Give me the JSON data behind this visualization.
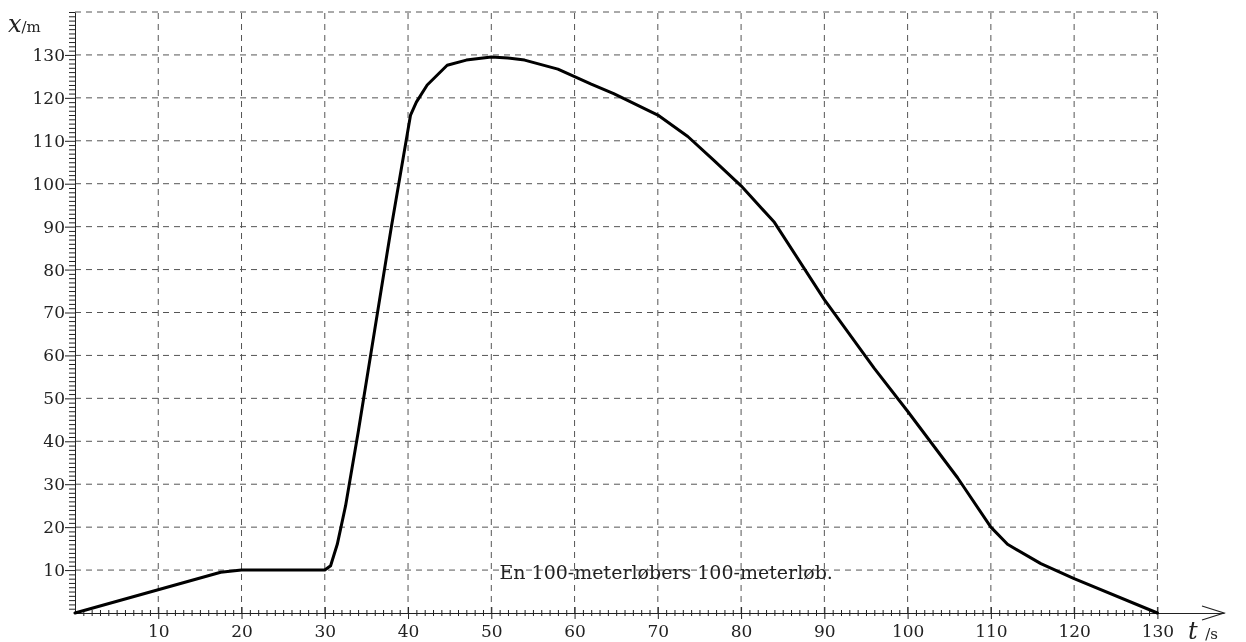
{
  "chart_data": {
    "type": "line",
    "xlabel": "t /s",
    "ylabel": "x/m",
    "annotations": [
      "En 100-meterløbers 100-meterløb."
    ],
    "xlim": [
      0,
      138
    ],
    "ylim": [
      0,
      140
    ],
    "xticks": [
      {
        "value": 1,
        "label": null
      },
      {
        "value": 2,
        "label": null
      },
      {
        "value": 3,
        "label": null
      },
      {
        "value": 4,
        "label": null
      },
      {
        "value": 5,
        "label": null
      },
      {
        "value": 6,
        "label": null
      },
      {
        "value": 7,
        "label": null
      },
      {
        "value": 8,
        "label": null
      },
      {
        "value": 9,
        "label": null
      },
      10,
      {
        "value": 11,
        "label": null
      },
      {
        "value": 12,
        "label": null
      },
      {
        "value": 13,
        "label": null
      },
      {
        "value": 14,
        "label": null
      },
      {
        "value": 15,
        "label": null
      },
      {
        "value": 16,
        "label": null
      },
      {
        "value": 17,
        "label": null
      },
      {
        "value": 18,
        "label": null
      },
      {
        "value": 19,
        "label": null
      },
      20,
      {
        "value": 21,
        "label": null
      },
      {
        "value": 22,
        "label": null
      },
      {
        "value": 23,
        "label": null
      },
      {
        "value": 24,
        "label": null
      },
      {
        "value": 25,
        "label": null
      },
      {
        "value": 26,
        "label": null
      },
      {
        "value": 27,
        "label": null
      },
      {
        "value": 28,
        "label": null
      },
      {
        "value": 29,
        "label": null
      },
      30,
      {
        "value": 31,
        "label": null
      },
      {
        "value": 32,
        "label": null
      },
      {
        "value": 33,
        "label": null
      },
      {
        "value": 34,
        "label": null
      },
      {
        "value": 35,
        "label": null
      },
      {
        "value": 36,
        "label": null
      },
      {
        "value": 37,
        "label": null
      },
      {
        "value": 38,
        "label": null
      },
      {
        "value": 39,
        "label": null
      },
      40,
      {
        "value": 41,
        "label": null
      },
      {
        "value": 42,
        "label": null
      },
      {
        "value": 43,
        "label": null
      },
      {
        "value": 44,
        "label": null
      },
      {
        "value": 45,
        "label": null
      },
      {
        "value": 46,
        "label": null
      },
      {
        "value": 47,
        "label": null
      },
      {
        "value": 48,
        "label": null
      },
      {
        "value": 49,
        "label": null
      },
      50,
      {
        "value": 51,
        "label": null
      },
      {
        "value": 52,
        "label": null
      },
      {
        "value": 53,
        "label": null
      },
      {
        "value": 54,
        "label": null
      },
      {
        "value": 55,
        "label": null
      },
      {
        "value": 56,
        "label": null
      },
      {
        "value": 57,
        "label": null
      },
      {
        "value": 58,
        "label": null
      },
      {
        "value": 59,
        "label": null
      },
      60,
      {
        "value": 61,
        "label": null
      },
      {
        "value": 62,
        "label": null
      },
      {
        "value": 63,
        "label": null
      },
      {
        "value": 64,
        "label": null
      },
      {
        "value": 65,
        "label": null
      },
      {
        "value": 66,
        "label": null
      },
      {
        "value": 67,
        "label": null
      },
      {
        "value": 68,
        "label": null
      },
      {
        "value": 69,
        "label": null
      },
      70,
      {
        "value": 71,
        "label": null
      },
      {
        "value": 72,
        "label": null
      },
      {
        "value": 73,
        "label": null
      },
      {
        "value": 74,
        "label": null
      },
      {
        "value": 75,
        "label": null
      },
      {
        "value": 76,
        "label": null
      },
      {
        "value": 77,
        "label": null
      },
      {
        "value": 78,
        "label": null
      },
      {
        "value": 79,
        "label": null
      },
      80,
      {
        "value": 81,
        "label": null
      },
      {
        "value": 82,
        "label": null
      },
      {
        "value": 83,
        "label": null
      },
      {
        "value": 84,
        "label": null
      },
      {
        "value": 85,
        "label": null
      },
      {
        "value": 86,
        "label": null
      },
      {
        "value": 87,
        "label": null
      },
      {
        "value": 88,
        "label": null
      },
      {
        "value": 89,
        "label": null
      },
      90,
      {
        "value": 91,
        "label": null
      },
      {
        "value": 92,
        "label": null
      },
      {
        "value": 93,
        "label": null
      },
      {
        "value": 94,
        "label": null
      },
      {
        "value": 95,
        "label": null
      },
      {
        "value": 96,
        "label": null
      },
      {
        "value": 97,
        "label": null
      },
      {
        "value": 98,
        "label": null
      },
      {
        "value": 99,
        "label": null
      },
      100,
      {
        "value": 101,
        "label": null
      },
      {
        "value": 102,
        "label": null
      },
      {
        "value": 103,
        "label": null
      },
      {
        "value": 104,
        "label": null
      },
      {
        "value": 105,
        "label": null
      },
      {
        "value": 106,
        "label": null
      },
      {
        "value": 107,
        "label": null
      },
      {
        "value": 108,
        "label": null
      },
      {
        "value": 109,
        "label": null
      },
      110,
      {
        "value": 111,
        "label": null
      },
      {
        "value": 112,
        "label": null
      },
      {
        "value": 113,
        "label": null
      },
      {
        "value": 114,
        "label": null
      },
      {
        "value": 115,
        "label": null
      },
      {
        "value": 116,
        "label": null
      },
      {
        "value": 117,
        "label": null
      },
      {
        "value": 118,
        "label": null
      },
      {
        "value": 119,
        "label": null
      },
      120,
      {
        "value": 121,
        "label": null
      },
      {
        "value": 122,
        "label": null
      },
      {
        "value": 123,
        "label": null
      },
      {
        "value": 124,
        "label": null
      },
      {
        "value": 125,
        "label": null
      },
      {
        "value": 126,
        "label": null
      },
      {
        "value": 127,
        "label": null
      },
      {
        "value": 128,
        "label": null
      },
      {
        "value": 129,
        "label": null
      },
      130
    ],
    "yticks": [
      {
        "value": 1,
        "label": null
      },
      {
        "value": 2,
        "label": null
      },
      {
        "value": 3,
        "label": null
      },
      {
        "value": 4,
        "label": null
      },
      {
        "value": 5,
        "label": null
      },
      {
        "value": 6,
        "label": null
      },
      {
        "value": 7,
        "label": null
      },
      {
        "value": 8,
        "label": null
      },
      {
        "value": 9,
        "label": null
      },
      10,
      {
        "value": 11,
        "label": null
      },
      {
        "value": 12,
        "label": null
      },
      {
        "value": 13,
        "label": null
      },
      {
        "value": 14,
        "label": null
      },
      {
        "value": 15,
        "label": null
      },
      {
        "value": 16,
        "label": null
      },
      {
        "value": 17,
        "label": null
      },
      {
        "value": 18,
        "label": null
      },
      {
        "value": 19,
        "label": null
      },
      20,
      {
        "value": 21,
        "label": null
      },
      {
        "value": 22,
        "label": null
      },
      {
        "value": 23,
        "label": null
      },
      {
        "value": 24,
        "label": null
      },
      {
        "value": 25,
        "label": null
      },
      {
        "value": 26,
        "label": null
      },
      {
        "value": 27,
        "label": null
      },
      {
        "value": 28,
        "label": null
      },
      {
        "value": 29,
        "label": null
      },
      30,
      {
        "value": 31,
        "label": null
      },
      {
        "value": 32,
        "label": null
      },
      {
        "value": 33,
        "label": null
      },
      {
        "value": 34,
        "label": null
      },
      {
        "value": 35,
        "label": null
      },
      {
        "value": 36,
        "label": null
      },
      {
        "value": 37,
        "label": null
      },
      {
        "value": 38,
        "label": null
      },
      {
        "value": 39,
        "label": null
      },
      40,
      {
        "value": 41,
        "label": null
      },
      {
        "value": 42,
        "label": null
      },
      {
        "value": 43,
        "label": null
      },
      {
        "value": 44,
        "label": null
      },
      {
        "value": 45,
        "label": null
      },
      {
        "value": 46,
        "label": null
      },
      {
        "value": 47,
        "label": null
      },
      {
        "value": 48,
        "label": null
      },
      {
        "value": 49,
        "label": null
      },
      50,
      {
        "value": 51,
        "label": null
      },
      {
        "value": 52,
        "label": null
      },
      {
        "value": 53,
        "label": null
      },
      {
        "value": 54,
        "label": null
      },
      {
        "value": 55,
        "label": null
      },
      {
        "value": 56,
        "label": null
      },
      {
        "value": 57,
        "label": null
      },
      {
        "value": 58,
        "label": null
      },
      {
        "value": 59,
        "label": null
      },
      60,
      {
        "value": 61,
        "label": null
      },
      {
        "value": 62,
        "label": null
      },
      {
        "value": 63,
        "label": null
      },
      {
        "value": 64,
        "label": null
      },
      {
        "value": 65,
        "label": null
      },
      {
        "value": 66,
        "label": null
      },
      {
        "value": 67,
        "label": null
      },
      {
        "value": 68,
        "label": null
      },
      {
        "value": 69,
        "label": null
      },
      70,
      {
        "value": 71,
        "label": null
      },
      {
        "value": 72,
        "label": null
      },
      {
        "value": 73,
        "label": null
      },
      {
        "value": 74,
        "label": null
      },
      {
        "value": 75,
        "label": null
      },
      {
        "value": 76,
        "label": null
      },
      {
        "value": 77,
        "label": null
      },
      {
        "value": 78,
        "label": null
      },
      {
        "value": 79,
        "label": null
      },
      80,
      {
        "value": 81,
        "label": null
      },
      {
        "value": 82,
        "label": null
      },
      {
        "value": 83,
        "label": null
      },
      {
        "value": 84,
        "label": null
      },
      {
        "value": 85,
        "label": null
      },
      {
        "value": 86,
        "label": null
      },
      {
        "value": 87,
        "label": null
      },
      {
        "value": 88,
        "label": null
      },
      {
        "value": 89,
        "label": null
      },
      90,
      {
        "value": 91,
        "label": null
      },
      {
        "value": 92,
        "label": null
      },
      {
        "value": 93,
        "label": null
      },
      {
        "value": 94,
        "label": null
      },
      {
        "value": 95,
        "label": null
      },
      {
        "value": 96,
        "label": null
      },
      {
        "value": 97,
        "label": null
      },
      {
        "value": 98,
        "label": null
      },
      {
        "value": 99,
        "label": null
      },
      100,
      {
        "value": 101,
        "label": null
      },
      {
        "value": 102,
        "label": null
      },
      {
        "value": 103,
        "label": null
      },
      {
        "value": 104,
        "label": null
      },
      {
        "value": 105,
        "label": null
      },
      {
        "value": 106,
        "label": null
      },
      {
        "value": 107,
        "label": null
      },
      {
        "value": 108,
        "label": null
      },
      {
        "value": 109,
        "label": null
      },
      110,
      {
        "value": 111,
        "label": null
      },
      {
        "value": 112,
        "label": null
      },
      {
        "value": 113,
        "label": null
      },
      {
        "value": 114,
        "label": null
      },
      {
        "value": 115,
        "label": null
      },
      {
        "value": 116,
        "label": null
      },
      {
        "value": 117,
        "label": null
      },
      {
        "value": 118,
        "label": null
      },
      {
        "value": 119,
        "label": null
      },
      120,
      {
        "value": 121,
        "label": null
      },
      {
        "value": 122,
        "label": null
      },
      {
        "value": 123,
        "label": null
      },
      {
        "value": 124,
        "label": null
      },
      {
        "value": 125,
        "label": null
      },
      {
        "value": 126,
        "label": null
      },
      {
        "value": 127,
        "label": null
      },
      {
        "value": 128,
        "label": null
      },
      {
        "value": 129,
        "label": null
      },
      130,
      {
        "value": 131,
        "label": null
      },
      {
        "value": 132,
        "label": null
      },
      {
        "value": 133,
        "label": null
      },
      {
        "value": 134,
        "label": null
      },
      {
        "value": 135,
        "label": null
      },
      {
        "value": 136,
        "label": null
      },
      {
        "value": 137,
        "label": null
      },
      {
        "value": 138,
        "label": null
      },
      {
        "value": 139,
        "label": null
      },
      {
        "value": 140,
        "label": null
      }
    ],
    "grid": true,
    "line_style": "solid",
    "marker": "none",
    "series": [
      {
        "color": "#000000",
        "x": [
          0,
          17.5,
          20,
          30,
          30.7,
          31.5,
          32.5,
          34,
          36,
          38,
          40.3,
          41,
          42.3,
          44.7,
          47,
          50,
          52,
          54,
          58,
          62,
          64.7,
          70,
          73.6,
          76.7,
          80,
          84,
          90,
          96,
          100,
          106,
          110,
          112,
          116,
          120,
          130
        ],
        "values": [
          0,
          9.5,
          10,
          10,
          11,
          16,
          25,
          42,
          66,
          90,
          116,
          119,
          123,
          127.6,
          128.8,
          129.5,
          129.3,
          128.8,
          126.7,
          123.2,
          121,
          116,
          111,
          105.5,
          99.5,
          91,
          73,
          57,
          47,
          31.5,
          20,
          16,
          11.5,
          8,
          0
        ]
      }
    ]
  }
}
